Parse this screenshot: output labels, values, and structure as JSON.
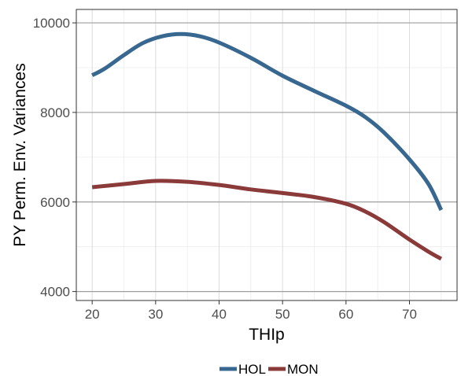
{
  "chart_data": {
    "type": "line",
    "xlabel": "THIp",
    "ylabel": "PY Perm. Env. Variances",
    "xlim": [
      17.5,
      77.5
    ],
    "ylim": [
      3800,
      10300
    ],
    "x_ticks": [
      20,
      30,
      40,
      50,
      60,
      70
    ],
    "y_ticks": [
      4000,
      6000,
      8000,
      10000
    ],
    "x_tick_labels": [
      "20",
      "30",
      "40",
      "50",
      "60",
      "70"
    ],
    "y_tick_labels": [
      "4000",
      "6000",
      "8000",
      "10000"
    ],
    "grid": true,
    "legend_position": "bottom",
    "series": [
      {
        "name": "HOL",
        "color": "#386890",
        "x": [
          20,
          22,
          25,
          28,
          31,
          34,
          37,
          40,
          45,
          50,
          55,
          60,
          63,
          66,
          70,
          73,
          75
        ],
        "y": [
          8830,
          8980,
          9280,
          9550,
          9700,
          9750,
          9700,
          9560,
          9220,
          8820,
          8480,
          8150,
          7900,
          7550,
          6950,
          6400,
          5820
        ]
      },
      {
        "name": "MON",
        "color": "#8b3a3a",
        "x": [
          20,
          25,
          30,
          35,
          40,
          45,
          50,
          55,
          60,
          63,
          66,
          70,
          73,
          75
        ],
        "y": [
          6330,
          6400,
          6470,
          6450,
          6380,
          6280,
          6200,
          6110,
          5960,
          5790,
          5550,
          5160,
          4890,
          4730
        ]
      }
    ]
  }
}
